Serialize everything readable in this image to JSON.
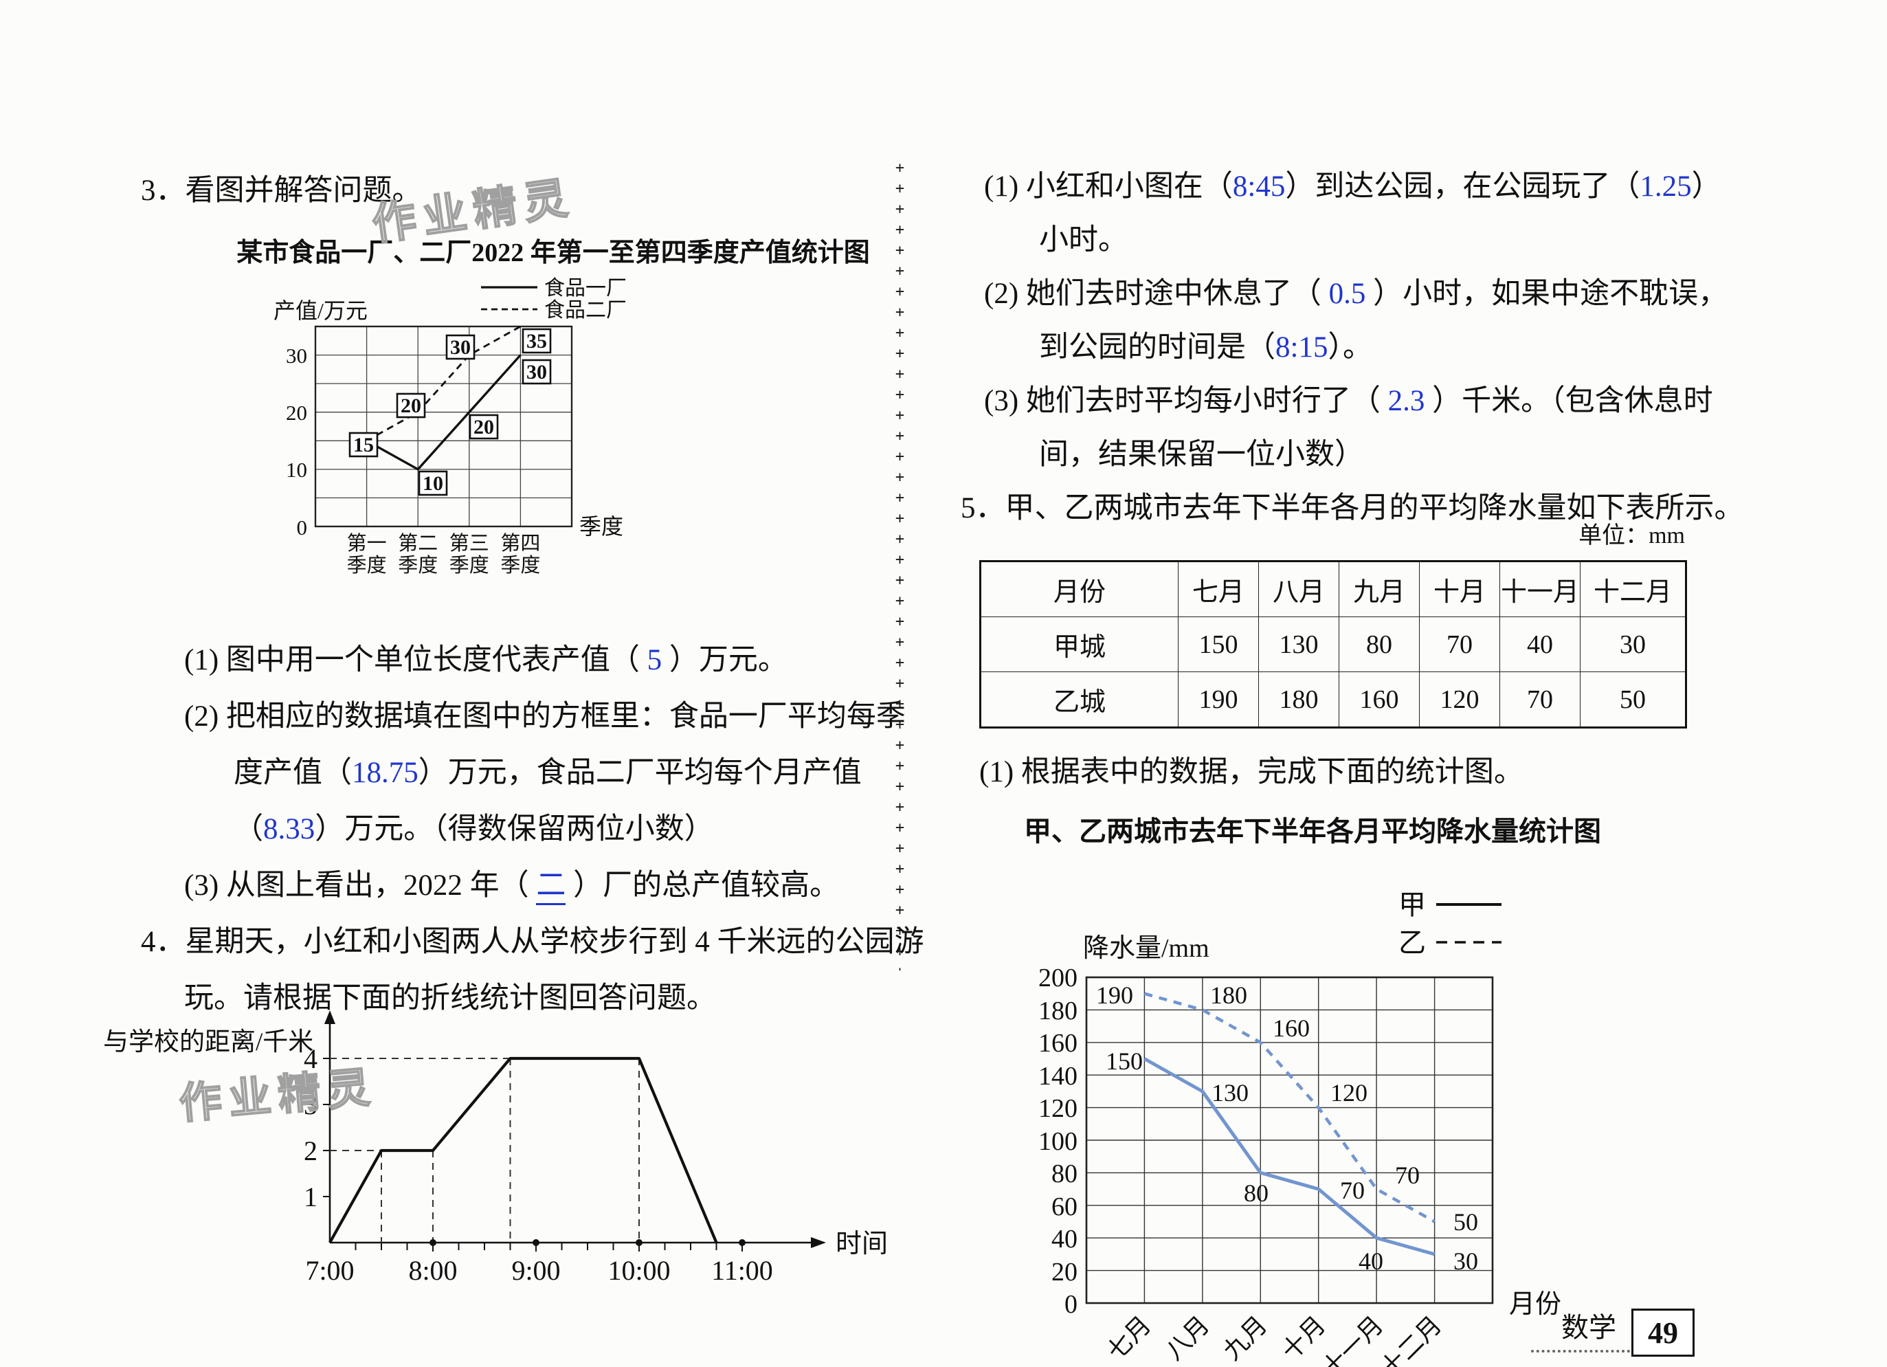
{
  "watermark_text": "作业精灵",
  "divider": {
    "glyphs": "++++++++++++++++++++++++++++++++++++++++"
  },
  "footer": {
    "subject": "数学",
    "page": "49"
  },
  "q3": {
    "heading": "3．看图并解答问题。",
    "lines": {
      "l1": [
        {
          "t": "(1) 图中用一个单位长度代表产值（ "
        },
        {
          "t": "5",
          "b": 1
        },
        {
          "t": " ）万元。"
        }
      ],
      "l2": [
        {
          "t": "(2) 把相应的数据填在图中的方框里：食品一厂平均每季"
        }
      ],
      "l3": [
        {
          "t": "度产值（"
        },
        {
          "t": "18.75",
          "b": 1
        },
        {
          "t": "）万元，食品二厂平均每个月产值"
        }
      ],
      "l4": [
        {
          "t": "（"
        },
        {
          "t": "8.33",
          "b": 1
        },
        {
          "t": "）万元。（得数保留两位小数）"
        }
      ],
      "l5": [
        {
          "t": "(3) 从图上看出，2022 年（ "
        },
        {
          "t": "二",
          "b": 1,
          "u": 1
        },
        {
          "t": " ）厂的总产值较高。"
        }
      ]
    }
  },
  "q4": {
    "l1": [
      {
        "t": "4．星期天，小红和小图两人从学校步行到 4 千米远的公园游"
      }
    ],
    "l2": [
      {
        "t": "玩。请根据下面的折线统计图回答问题。"
      }
    ],
    "answers": {
      "a1": [
        {
          "t": "(1) 小红和小图在（"
        },
        {
          "t": "8:45",
          "b": 1
        },
        {
          "t": "）到达公园，在公园玩了（"
        },
        {
          "t": "1.25",
          "b": 1
        },
        {
          "t": "）"
        }
      ],
      "a1b": [
        {
          "t": "小时。"
        }
      ],
      "a2": [
        {
          "t": "(2) 她们去时途中休息了（ "
        },
        {
          "t": "0.5",
          "b": 1
        },
        {
          "t": " ）小时，如果中途不耽误，"
        }
      ],
      "a2b": [
        {
          "t": "到公园的时间是（"
        },
        {
          "t": "8:15",
          "b": 1
        },
        {
          "t": "）。"
        }
      ],
      "a3": [
        {
          "t": "(3) 她们去时平均每小时行了（ "
        },
        {
          "t": "2.3",
          "b": 1
        },
        {
          "t": " ）千米。（包含休息时"
        }
      ],
      "a3b": [
        {
          "t": "间，结果保留一位小数）"
        }
      ]
    }
  },
  "q5": {
    "l1": [
      {
        "t": "5．甲、乙两城市去年下半年各月的平均降水量如下表所示。"
      }
    ],
    "unit": "单位：mm",
    "table": {
      "headers": [
        "月份",
        "七月",
        "八月",
        "九月",
        "十月",
        "十一月",
        "十二月"
      ],
      "rows": [
        {
          "label": "甲城",
          "values": [
            "150",
            "130",
            "80",
            "70",
            "40",
            "30"
          ]
        },
        {
          "label": "乙城",
          "values": [
            "190",
            "180",
            "160",
            "120",
            "70",
            "50"
          ]
        }
      ]
    },
    "sub1": [
      {
        "t": "(1) 根据表中的数据，完成下面的统计图。"
      }
    ]
  },
  "chart1": {
    "type": "line",
    "title": "某市食品一厂、二厂2022 年第一至第四季度产值统计图",
    "ylabel": "产值/万元",
    "xlabel": "季度",
    "ylim": [
      0,
      35
    ],
    "grid_step": 5,
    "yticks": [
      "30",
      "20",
      "10",
      "0"
    ],
    "categories": [
      "第一季度",
      "第二季度",
      "第三季度",
      "第四季度"
    ],
    "cat_l1": [
      "第一",
      "第二",
      "第三",
      "第四"
    ],
    "cat_l2": [
      "季度",
      "季度",
      "季度",
      "季度"
    ],
    "legend": [
      "食品一厂",
      "食品二厂"
    ],
    "series": [
      {
        "name": "食品一厂",
        "style": "solid",
        "values": [
          15,
          10,
          20,
          30
        ]
      },
      {
        "name": "食品二厂",
        "style": "dashed",
        "values": [
          15,
          20,
          30,
          35
        ]
      }
    ],
    "box_answers": [
      "15",
      "20",
      "10",
      "30",
      "20",
      "35",
      "30"
    ]
  },
  "chart2": {
    "type": "line",
    "ylabel": "与学校的距离/千米",
    "xlabel": "时间",
    "xticks": [
      "7:00",
      "8:00",
      "9:00",
      "10:00",
      "11:00"
    ],
    "yticks": [
      "4",
      "3",
      "2",
      "1"
    ],
    "points": [
      [
        "7:00",
        0
      ],
      [
        "7:30",
        2
      ],
      [
        "8:00",
        2
      ],
      [
        "8:45",
        4
      ],
      [
        "10:00",
        4
      ],
      [
        "10:45",
        0
      ]
    ]
  },
  "chart3": {
    "type": "line",
    "title": "甲、乙两城市去年下半年各月平均降水量统计图",
    "ylabel": "降水量/mm",
    "xlabel": "月份",
    "ylim": [
      0,
      200
    ],
    "grid_step": 20,
    "yticks": [
      "200",
      "180",
      "160",
      "140",
      "120",
      "100",
      "80",
      "60",
      "40",
      "20",
      "0"
    ],
    "categories": [
      "七月",
      "八月",
      "九月",
      "十月",
      "十一月",
      "十二月"
    ],
    "legend": [
      "甲",
      "乙"
    ],
    "series": [
      {
        "name": "甲",
        "style": "solid",
        "values": [
          150,
          130,
          80,
          70,
          40,
          30
        ]
      },
      {
        "name": "乙",
        "style": "dashed",
        "values": [
          190,
          180,
          160,
          120,
          70,
          50
        ]
      }
    ]
  }
}
